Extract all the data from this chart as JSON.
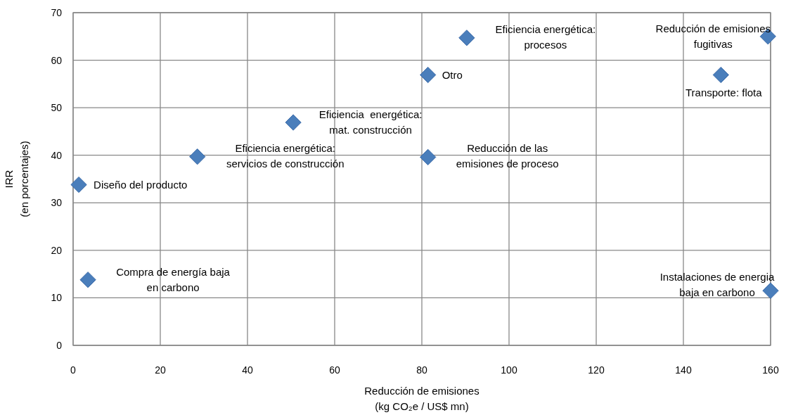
{
  "chart_data": {
    "type": "scatter",
    "xlabel": "Reducción de emisiones\n(kg CO₂e / US$ mn)",
    "ylabel": "IRR\n(en porcentajes)",
    "x": [
      1.3,
      3.4,
      28.5,
      50.5,
      81.4,
      81.4,
      90.3,
      159.4,
      148.6,
      160
    ],
    "values": [
      33.8,
      13.8,
      39.7,
      46.9,
      56.9,
      39.6,
      64.7,
      65.0,
      56.9,
      11.5
    ],
    "color": "#4a7ebb",
    "marker": "diamond",
    "grid": true,
    "xlim": [
      0,
      160
    ],
    "xticks": [
      0,
      20,
      40,
      60,
      80,
      100,
      120,
      140,
      160
    ],
    "ylim": [
      0,
      70
    ],
    "yticks": [
      0,
      10,
      20,
      30,
      40,
      50,
      60,
      70
    ],
    "annotations": [
      {
        "text": "Diseño del producto",
        "x": 1.3,
        "y": 33.8
      },
      {
        "text": "Compra de energía baja\nen carbono",
        "x": 3.4,
        "y": 13.8
      },
      {
        "text": "Eficiencia energética:\nservicios de construcción",
        "x": 28.5,
        "y": 39.7
      },
      {
        "text": "Eficiencia  energética:\nmat. construcción",
        "x": 50.5,
        "y": 46.9
      },
      {
        "text": "Otro",
        "x": 81.4,
        "y": 56.9
      },
      {
        "text": "Reducción de las\nemisiones de proceso",
        "x": 81.4,
        "y": 39.6
      },
      {
        "text": "Eficiencia energética:\nprocesos",
        "x": 90.3,
        "y": 64.7
      },
      {
        "text": "Reducción de emisiones\nfugitivas",
        "x": 159.4,
        "y": 65.0
      },
      {
        "text": "Transporte: flota",
        "x": 148.6,
        "y": 56.9
      },
      {
        "text": "Instalaciones de energia\nbaja en carbono",
        "x": 160,
        "y": 11.5
      }
    ]
  }
}
